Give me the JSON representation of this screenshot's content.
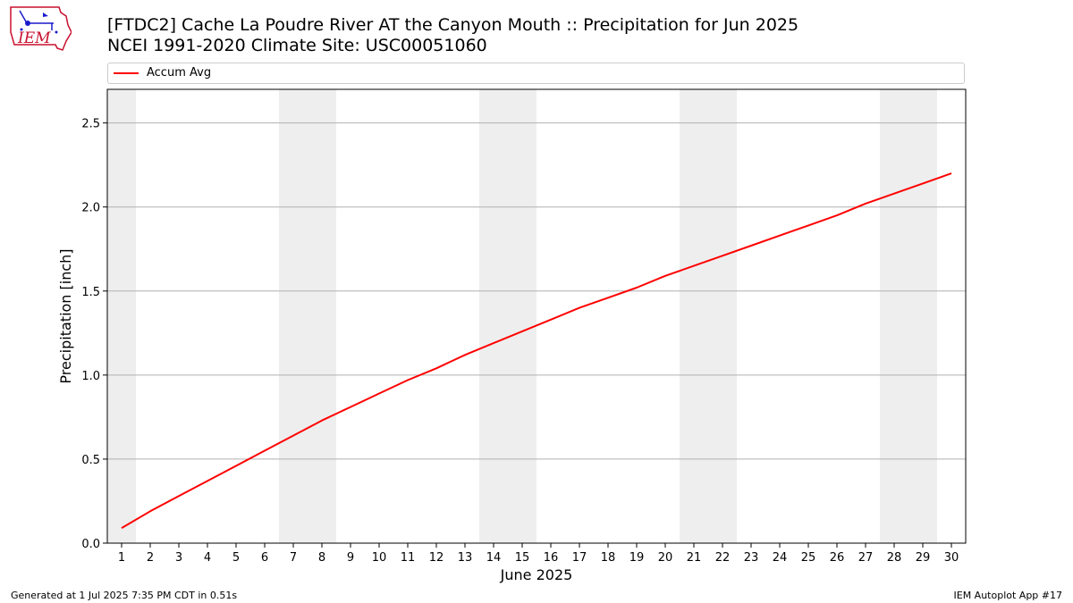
{
  "title_line1": "[FTDC2] Cache La Poudre River  AT the Canyon Mouth :: Precipitation for Jun 2025",
  "title_line2": "NCEI 1991-2020 Climate Site: USC00051060",
  "logo_text": "IEM",
  "footer_left": "Generated at 1 Jul 2025 7:35 PM CDT in 0.51s",
  "footer_right": "IEM Autoplot App #17",
  "colors": {
    "line": "#ff0000",
    "weekend_band": "#eeeeee",
    "grid": "#b0b0b0"
  },
  "chart_data": {
    "type": "line",
    "xlabel": "June 2025",
    "ylabel": "Precipitation [inch]",
    "x": [
      1,
      2,
      3,
      4,
      5,
      6,
      7,
      8,
      9,
      10,
      11,
      12,
      13,
      14,
      15,
      16,
      17,
      18,
      19,
      20,
      21,
      22,
      23,
      24,
      25,
      26,
      27,
      28,
      29,
      30
    ],
    "xlim": [
      0.5,
      30.5
    ],
    "ylim": [
      0,
      2.7
    ],
    "yticks": [
      0.0,
      0.5,
      1.0,
      1.5,
      2.0,
      2.5
    ],
    "ytick_labels": [
      "0.0",
      "0.5",
      "1.0",
      "1.5",
      "2.0",
      "2.5"
    ],
    "grid": "horizontal",
    "legend_placement": "top",
    "weekend_bands": [
      [
        0.5,
        1.5
      ],
      [
        6.5,
        8.5
      ],
      [
        13.5,
        15.5
      ],
      [
        20.5,
        22.5
      ],
      [
        27.5,
        29.5
      ]
    ],
    "series": [
      {
        "name": "Accum Avg",
        "values": [
          0.09,
          0.19,
          0.28,
          0.37,
          0.46,
          0.55,
          0.64,
          0.73,
          0.81,
          0.89,
          0.97,
          1.04,
          1.12,
          1.19,
          1.26,
          1.33,
          1.4,
          1.46,
          1.52,
          1.59,
          1.65,
          1.71,
          1.77,
          1.83,
          1.89,
          1.95,
          2.02,
          2.08,
          2.14,
          2.2
        ]
      }
    ]
  }
}
